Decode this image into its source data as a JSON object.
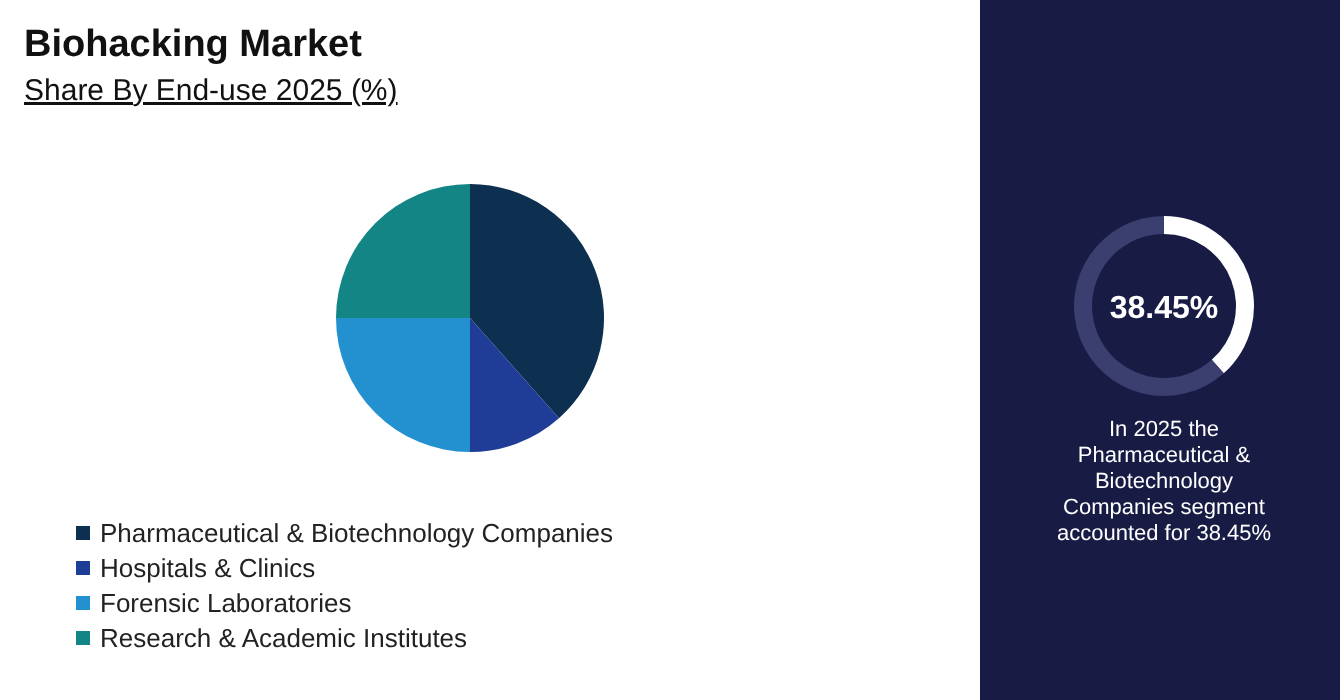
{
  "chart_data": [
    {
      "type": "pie",
      "title": "Biohacking Market",
      "subtitle": "Share By End-use 2025 (%)",
      "categories": [
        "Pharmaceutical & Biotechnology Companies",
        "Hospitals & Clinics",
        "Forensic Laboratories",
        "Research & Academic Institutes"
      ],
      "values": [
        38.45,
        11.55,
        25,
        25
      ],
      "colors": [
        "#0d2f50",
        "#1f3c96",
        "#2390d0",
        "#138585"
      ],
      "legend": "bottom left"
    },
    {
      "type": "donut",
      "categories": [
        null,
        null
      ],
      "values": [
        38.45,
        61.55
      ],
      "colors": [
        "#ffffff",
        "#3b3f70"
      ],
      "title": "38.45%",
      "annotations": [
        "In 2025 the Pharmaceutical & Biotechnology Companies segment accounted for 38.45%"
      ]
    }
  ]
}
